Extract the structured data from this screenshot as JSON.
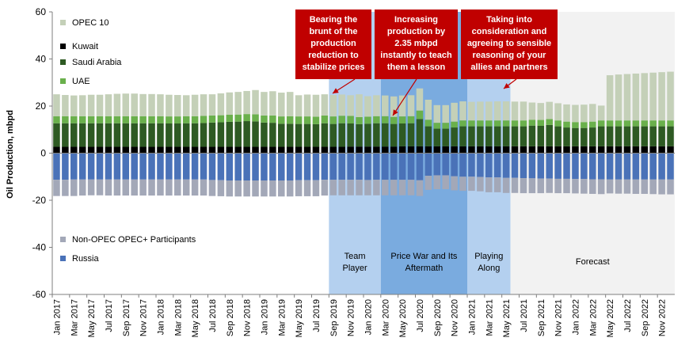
{
  "chart_data": {
    "type": "bar",
    "stacked": true,
    "ylabel": "Oil Production, mbpd",
    "ylim": [
      -60,
      60
    ],
    "yticks": [
      -60,
      -40,
      -20,
      0,
      20,
      40,
      60
    ],
    "grid": false,
    "x_start": "Jan 2017",
    "n_bars": 72,
    "x_tick_labels": [
      "Jan 2017",
      "Mar 2017",
      "May 2017",
      "Jul 2017",
      "Sep 2017",
      "Nov 2017",
      "Jan 2018",
      "Mar 2018",
      "May 2018",
      "Jul 2018",
      "Sep 2018",
      "Nov 2018",
      "Jan 2019",
      "Mar 2019",
      "May 2019",
      "Jul 2019",
      "Sep 2019",
      "Nov 2019",
      "Jan 2020",
      "Mar 2020",
      "May 2020",
      "Jul 2020",
      "Sep 2020",
      "Nov 2020",
      "Jan 2021",
      "Mar 2021",
      "May 2021",
      "Jul 2021",
      "Sep 2021",
      "Nov 2021",
      "Jan 2022",
      "Mar 2022",
      "May 2022",
      "Jul 2022",
      "Sep 2022",
      "Nov 2022"
    ],
    "series": [
      {
        "name": "Kuwait",
        "color": "#000000",
        "sign": "positive",
        "values": [
          2.7,
          2.7,
          2.7,
          2.7,
          2.7,
          2.7,
          2.7,
          2.7,
          2.7,
          2.7,
          2.7,
          2.7,
          2.7,
          2.7,
          2.7,
          2.7,
          2.7,
          2.7,
          2.7,
          2.7,
          2.7,
          2.7,
          2.7,
          2.7,
          2.7,
          2.7,
          2.7,
          2.7,
          2.7,
          2.7,
          2.7,
          2.7,
          2.7,
          2.7,
          2.8,
          2.8,
          2.8,
          2.8,
          2.8,
          2.8,
          2.9,
          2.9,
          2.9,
          2.9,
          2.9,
          2.9,
          2.9,
          2.9,
          2.9,
          2.9,
          2.9,
          2.9,
          2.9,
          2.9,
          2.9,
          2.9,
          2.9,
          2.9,
          2.9,
          2.9,
          2.9,
          2.9,
          2.9,
          2.9,
          2.9,
          2.9,
          2.9,
          2.9,
          2.9,
          2.9,
          2.9,
          2.9
        ]
      },
      {
        "name": "Saudi Arabia",
        "color": "#2e5a23",
        "sign": "positive",
        "values": [
          10.0,
          10.0,
          10.0,
          10.0,
          10.0,
          10.0,
          10.0,
          10.0,
          10.0,
          10.0,
          10.0,
          10.0,
          10.0,
          9.9,
          9.9,
          10.0,
          10.0,
          10.1,
          10.3,
          10.4,
          10.6,
          10.7,
          10.9,
          10.8,
          10.3,
          10.2,
          9.8,
          9.8,
          9.7,
          9.7,
          9.6,
          10.0,
          9.7,
          10.0,
          9.8,
          9.5,
          9.7,
          9.9,
          9.9,
          9.6,
          9.7,
          9.8,
          11.6,
          8.5,
          7.5,
          7.5,
          8.0,
          8.5,
          8.5,
          8.5,
          8.5,
          8.5,
          8.5,
          8.5,
          8.5,
          8.8,
          8.7,
          9.1,
          8.5,
          8.0,
          7.8,
          7.8,
          8.0,
          8.5,
          8.5,
          8.5,
          8.5,
          8.5,
          8.5,
          8.5,
          8.5,
          8.5
        ]
      },
      {
        "name": "UAE",
        "color": "#6ab04c",
        "sign": "positive",
        "values": [
          3.0,
          3.0,
          3.0,
          3.0,
          3.0,
          3.0,
          3.0,
          3.0,
          3.0,
          3.0,
          3.0,
          3.0,
          3.0,
          3.0,
          3.0,
          3.0,
          3.0,
          3.0,
          3.0,
          3.0,
          3.0,
          3.0,
          3.0,
          3.0,
          3.0,
          3.1,
          3.1,
          3.2,
          3.2,
          3.2,
          3.2,
          3.3,
          3.2,
          3.2,
          3.2,
          3.0,
          3.0,
          3.0,
          3.0,
          3.0,
          3.0,
          3.0,
          3.6,
          2.8,
          2.5,
          2.5,
          2.5,
          2.5,
          2.5,
          2.5,
          2.5,
          2.5,
          2.5,
          2.5,
          2.5,
          2.5,
          2.5,
          2.5,
          2.5,
          2.5,
          2.5,
          2.5,
          2.5,
          2.5,
          2.5,
          2.5,
          2.5,
          2.5,
          2.5,
          2.5,
          2.5,
          2.5
        ]
      },
      {
        "name": "OPEC 10",
        "color": "#c4d0b8",
        "sign": "positive",
        "values": [
          9.3,
          9.0,
          8.8,
          8.9,
          9.1,
          9.1,
          9.3,
          9.5,
          9.6,
          9.6,
          9.4,
          9.4,
          9.3,
          9.2,
          9.1,
          8.9,
          9.1,
          9.2,
          9.0,
          9.3,
          9.5,
          9.6,
          9.8,
          10.3,
          10.0,
          10.3,
          10.1,
          10.3,
          9.0,
          9.3,
          9.3,
          9.0,
          9.1,
          9.0,
          8.8,
          9.7,
          8.7,
          8.9,
          8.8,
          8.7,
          8.9,
          8.9,
          9.4,
          8.5,
          7.5,
          7.5,
          8.0,
          8.1,
          7.9,
          8.0,
          8.0,
          8.1,
          8.1,
          8.0,
          8.0,
          7.3,
          7.2,
          7.3,
          7.3,
          7.3,
          7.3,
          7.4,
          7.5,
          6.3,
          19.2,
          19.5,
          19.7,
          19.9,
          20.1,
          20.3,
          20.5,
          20.7
        ]
      },
      {
        "name": "Russia",
        "color": "#4a72b8",
        "sign": "negative",
        "values": [
          11.3,
          11.3,
          11.2,
          11.2,
          11.2,
          11.2,
          11.2,
          11.2,
          11.2,
          11.2,
          11.2,
          11.2,
          11.2,
          11.2,
          11.2,
          11.2,
          11.2,
          11.2,
          11.4,
          11.5,
          11.6,
          11.6,
          11.6,
          11.6,
          11.6,
          11.6,
          11.6,
          11.6,
          11.5,
          11.5,
          11.5,
          11.3,
          11.3,
          11.3,
          11.3,
          11.3,
          11.4,
          11.3,
          11.3,
          11.3,
          11.3,
          11.3,
          11.5,
          9.6,
          9.4,
          9.4,
          9.8,
          10.0,
          10.0,
          10.1,
          10.3,
          10.3,
          10.5,
          10.5,
          10.6,
          10.7,
          10.8,
          10.8,
          10.9,
          10.9,
          11.0,
          11.0,
          11.1,
          11.1,
          11.2,
          11.2,
          11.2,
          11.2,
          11.2,
          11.2,
          11.2,
          11.2
        ]
      },
      {
        "name": "Non-OPEC OPEC+ Participants",
        "color": "#a3a8b8",
        "sign": "negative",
        "values": [
          6.9,
          6.9,
          7.0,
          6.8,
          6.7,
          6.7,
          6.8,
          6.8,
          6.8,
          6.8,
          6.8,
          6.8,
          6.8,
          6.8,
          6.8,
          6.8,
          6.8,
          6.8,
          6.8,
          6.8,
          6.8,
          6.8,
          6.8,
          6.8,
          6.8,
          6.8,
          6.8,
          6.8,
          6.8,
          6.8,
          6.8,
          6.7,
          6.6,
          6.6,
          6.6,
          6.6,
          6.5,
          6.6,
          6.6,
          6.6,
          6.6,
          6.6,
          6.7,
          6.0,
          5.9,
          5.9,
          6.0,
          6.0,
          6.0,
          6.1,
          6.3,
          6.3,
          6.4,
          6.4,
          6.4,
          6.3,
          6.2,
          6.1,
          6.1,
          6.1,
          6.1,
          6.2,
          6.2,
          6.3,
          5.9,
          6.0,
          6.0,
          6.1,
          6.1,
          6.2,
          6.3,
          6.3
        ]
      }
    ],
    "legend": {
      "top_group": [
        "OPEC 10",
        "Kuwait",
        "Saudi Arabia",
        "UAE"
      ],
      "bottom_group": [
        "Non-OPEC OPEC+ Participants",
        "Russia"
      ]
    },
    "periods": [
      {
        "label_lines": [
          "Team",
          "Player"
        ],
        "from": "Sep 2019",
        "to": "Feb 2020",
        "color": "#b4d0ef"
      },
      {
        "label_lines": [
          "Price War and Its",
          "Aftermath"
        ],
        "from": "Mar 2020",
        "to": "Dec 2020",
        "color": "#7aabdf"
      },
      {
        "label_lines": [
          "Playing",
          "Along"
        ],
        "from": "Jan 2021",
        "to": "May 2021",
        "color": "#b4d0ef"
      },
      {
        "label_lines": [
          "Forecast"
        ],
        "from": "Jun 2021",
        "to": "Dec 2022",
        "color": "#f2f2f2"
      }
    ],
    "annotations": [
      {
        "lines": [
          "Bearing the",
          "brunt of the",
          "production",
          "reduction to",
          "stabilize prices"
        ],
        "color": "#c00000"
      },
      {
        "lines": [
          "Increasing",
          "production by",
          "2.35 mbpd",
          "instantly to teach",
          "them a lesson"
        ],
        "color": "#c00000"
      },
      {
        "lines": [
          "Taking into",
          "consideration  and",
          "agreeing to sensible",
          "reasoning of your",
          "allies and partners"
        ],
        "color": "#c00000"
      }
    ]
  }
}
